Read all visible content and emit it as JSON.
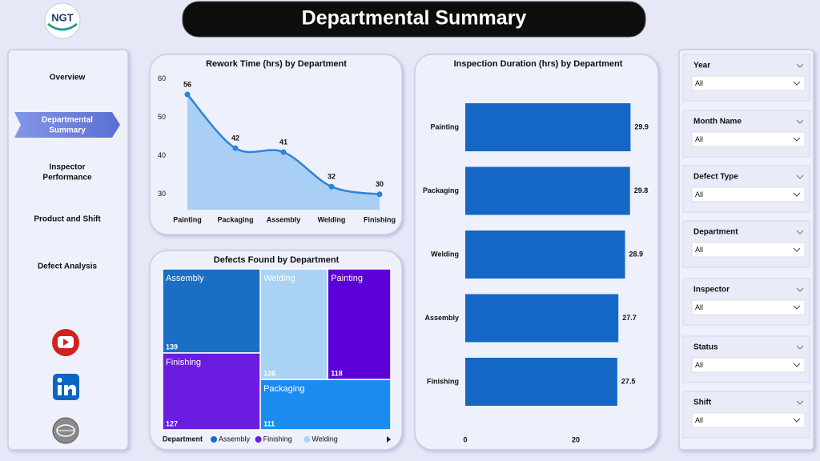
{
  "header": {
    "logo": "NGT",
    "title": "Departmental Summary"
  },
  "nav": {
    "items": [
      "Overview",
      "Departmental Summary",
      "Inspector Performance",
      "Product and Shift",
      "Defect Analysis"
    ]
  },
  "filters": [
    {
      "label": "Year",
      "value": "All"
    },
    {
      "label": "Month Name",
      "value": "All"
    },
    {
      "label": "Defect Type",
      "value": "All"
    },
    {
      "label": "Department",
      "value": "All"
    },
    {
      "label": "Inspector",
      "value": "All"
    },
    {
      "label": "Status",
      "value": "All"
    },
    {
      "label": "Shift",
      "value": "All"
    }
  ],
  "chart_data": [
    {
      "type": "line",
      "title": "Rework Time (hrs) by Department",
      "categories": [
        "Painting",
        "Packaging",
        "Assembly",
        "Welding",
        "Finishing"
      ],
      "values": [
        56,
        42,
        41,
        32,
        30
      ],
      "ylim": [
        26,
        62
      ],
      "yticks": [
        30,
        40,
        50,
        60
      ],
      "color": "#2b84d8",
      "area_color": "#a9cff5"
    },
    {
      "type": "treemap",
      "title": "Defects Found by Department",
      "legend_title": "Department",
      "categories": [
        "Assembly",
        "Finishing",
        "Welding",
        "Painting",
        "Packaging"
      ],
      "values": [
        139,
        127,
        126,
        118,
        111
      ],
      "colors": [
        "#1a6fc4",
        "#6a1de0",
        "#a9d2f5",
        "#5b00d6",
        "#1a8cf0"
      ]
    },
    {
      "type": "bar",
      "orientation": "horizontal",
      "title": "Inspection Duration (hrs) by Department",
      "categories": [
        "Painting",
        "Packaging",
        "Welding",
        "Assembly",
        "Finishing"
      ],
      "values": [
        29.9,
        29.8,
        28.9,
        27.7,
        27.5
      ],
      "xlim": [
        0,
        31
      ],
      "xticks": [
        0,
        20
      ],
      "color": "#1467c4"
    }
  ]
}
